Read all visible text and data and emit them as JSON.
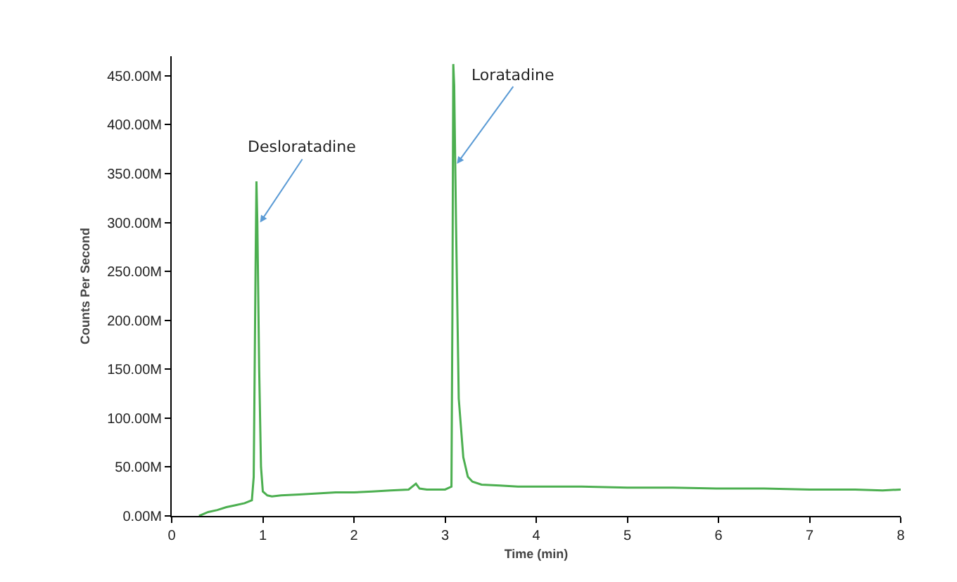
{
  "chart_data": {
    "type": "line",
    "xlabel": "Time (min)",
    "ylabel": "Counts Per Second",
    "x": [
      0.3,
      0.4,
      0.5,
      0.6,
      0.7,
      0.8,
      0.88,
      0.9,
      0.92,
      0.93,
      0.94,
      0.96,
      0.98,
      1.0,
      1.05,
      1.1,
      1.2,
      1.4,
      1.6,
      1.8,
      2.0,
      2.2,
      2.4,
      2.6,
      2.68,
      2.72,
      2.8,
      3.0,
      3.07,
      3.08,
      3.09,
      3.1,
      3.12,
      3.15,
      3.2,
      3.25,
      3.3,
      3.4,
      3.6,
      3.8,
      4.0,
      4.5,
      5.0,
      5.5,
      6.0,
      6.5,
      7.0,
      7.5,
      7.8,
      8.0
    ],
    "series": [
      {
        "color": "#4caf50",
        "values": [
          0,
          4,
          6,
          9,
          11,
          13,
          16,
          40,
          250,
          342,
          300,
          150,
          50,
          25,
          21,
          20,
          21,
          22,
          23,
          24,
          24,
          25,
          26,
          27,
          33,
          28,
          27,
          27,
          30,
          200,
          462,
          440,
          300,
          120,
          60,
          40,
          35,
          32,
          31,
          30,
          30,
          30,
          29,
          29,
          28,
          28,
          27,
          27,
          26,
          27
        ]
      }
    ],
    "xlim": [
      0,
      8
    ],
    "xticks": [
      0,
      1,
      2,
      3,
      4,
      5,
      6,
      7,
      8
    ],
    "ylim": [
      0,
      470
    ],
    "yticks": [
      {
        "value": 0,
        "label": "0.00M"
      },
      {
        "value": 50,
        "label": "50.00M"
      },
      {
        "value": 100,
        "label": "100.00M"
      },
      {
        "value": 150,
        "label": "150.00M"
      },
      {
        "value": 200,
        "label": "200.00M"
      },
      {
        "value": 250,
        "label": "250.00M"
      },
      {
        "value": 300,
        "label": "300.00M"
      },
      {
        "value": 350,
        "label": "350.00M"
      },
      {
        "value": 400,
        "label": "400.00M"
      },
      {
        "value": 450,
        "label": "450.00M"
      }
    ],
    "annotations": [
      {
        "text": "Desloratadine",
        "x": 0.97,
        "y": 300
      },
      {
        "text": "Loratadine",
        "x": 3.13,
        "y": 360
      }
    ],
    "grid": false,
    "marker": "none",
    "line_style": "solid"
  }
}
